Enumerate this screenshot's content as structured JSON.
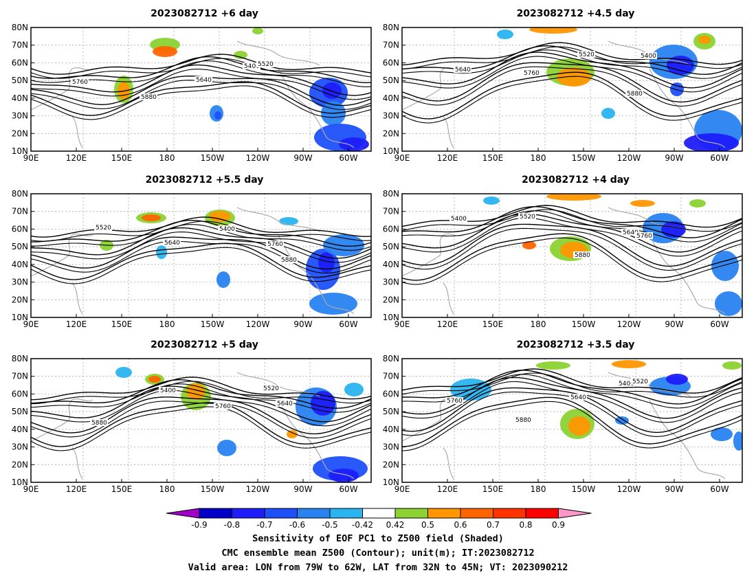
{
  "panels": [
    {
      "title": "2023082712 +6 day"
    },
    {
      "title": "2023082712 +4.5 day"
    },
    {
      "title": "2023082712 +5.5 day"
    },
    {
      "title": "2023082712 +4 day"
    },
    {
      "title": "2023082712 +5 day"
    },
    {
      "title": "2023082712 +3.5 day"
    }
  ],
  "axes": {
    "lon_ticks": [
      "90E",
      "120E",
      "150E",
      "180",
      "150W",
      "120W",
      "90W",
      "60W"
    ],
    "lat_ticks": [
      "10N",
      "20N",
      "30N",
      "40N",
      "50N",
      "60N",
      "70N",
      "80N"
    ]
  },
  "contour_levels": [
    "5400",
    "5520",
    "5640",
    "5760",
    "5880"
  ],
  "colorbar": {
    "labels": [
      "-0.9",
      "-0.8",
      "-0.7",
      "-0.6",
      "-0.5",
      "-0.42",
      "0.42",
      "0.5",
      "0.6",
      "0.7",
      "0.8",
      "0.9"
    ],
    "colors": [
      "#a000c8",
      "#0000c8",
      "#1e1efa",
      "#1e50fa",
      "#2882f0",
      "#2ab4f0",
      "#ffffff",
      "#8cd232",
      "#ff9600",
      "#ff6400",
      "#ff3200",
      "#ff0000",
      "#ff96c8"
    ]
  },
  "footer": {
    "line1": "Sensitivity of EOF PC1 to Z500 field (Shaded)",
    "line2": "CMC ensemble mean Z500 (Contour); unit(m); IT:2023082712",
    "line3": "Valid area: LON from 79W to 62W, LAT from 32N to 45N; VT: 2023090212"
  }
}
